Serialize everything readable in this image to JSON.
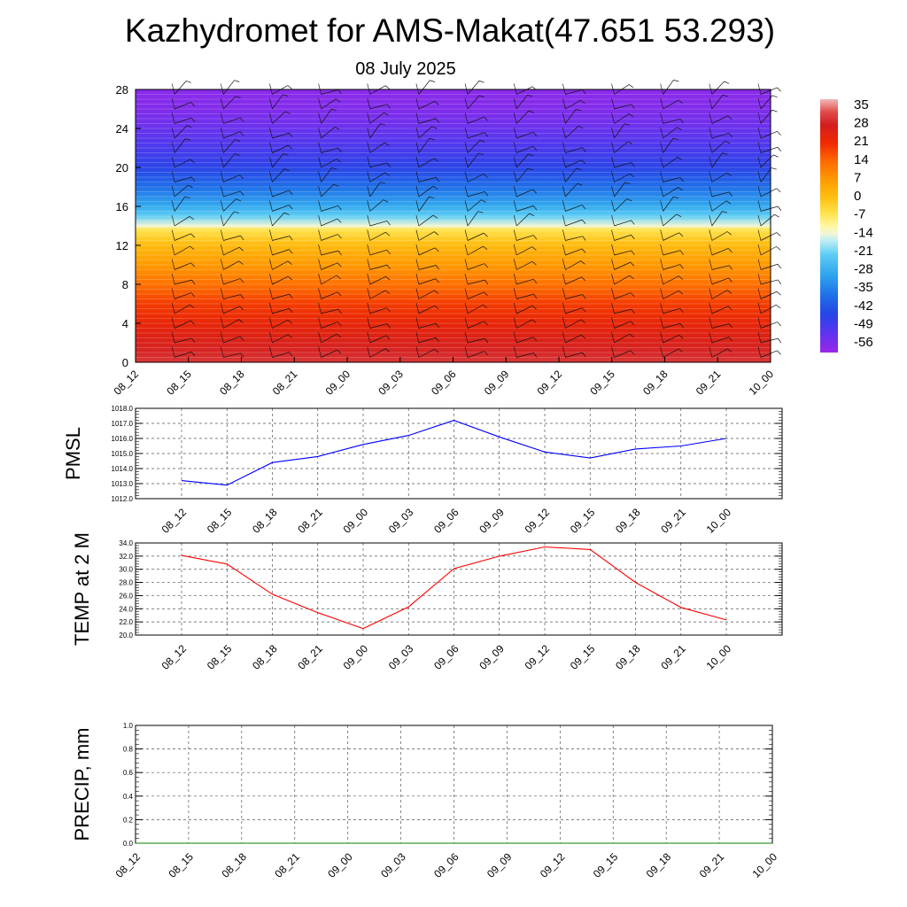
{
  "title": "Kazhydromet for AMS-Makat(47.651 53.293)",
  "subtitle": "08 July 2025",
  "time_labels": [
    "08_12",
    "08_15",
    "08_18",
    "08_21",
    "09_00",
    "09_03",
    "09_06",
    "09_09",
    "09_12",
    "09_15",
    "09_18",
    "09_21",
    "10_00"
  ],
  "colors": {
    "pmsl_line": "#0000ff",
    "temp_line": "#ff0000",
    "precip_line": "#008000",
    "grid": "#555555"
  },
  "chart_data": [
    {
      "type": "heatmap",
      "description_of_field": "",
      "x": [
        "08_12",
        "08_15",
        "08_18",
        "08_21",
        "09_00",
        "09_03",
        "09_06",
        "09_09",
        "09_12",
        "09_15",
        "09_18",
        "09_21",
        "10_00"
      ],
      "ylim": [
        0,
        28
      ],
      "yticks": [
        0,
        4,
        8,
        12,
        16,
        20,
        24,
        28
      ],
      "colorbar": {
        "ticks": [
          35,
          28,
          21,
          14,
          7,
          0,
          -7,
          -14,
          -21,
          -28,
          -35,
          -42,
          -49,
          -56
        ],
        "range": [
          -60,
          38
        ],
        "stops": [
          {
            "v": -60,
            "c": "#9a27e8"
          },
          {
            "v": -52,
            "c": "#5a35f0"
          },
          {
            "v": -45,
            "c": "#2346e6"
          },
          {
            "v": -38,
            "c": "#1f6fe8"
          },
          {
            "v": -30,
            "c": "#2ea5ee"
          },
          {
            "v": -22,
            "c": "#5fcdf4"
          },
          {
            "v": -17,
            "c": "#b8ecf4"
          },
          {
            "v": -14,
            "c": "#f1f6d8"
          },
          {
            "v": -11,
            "c": "#fff7a0"
          },
          {
            "v": -6,
            "c": "#ffe24a"
          },
          {
            "v": 0,
            "c": "#ffbf10"
          },
          {
            "v": 7,
            "c": "#ff9900"
          },
          {
            "v": 14,
            "c": "#ff6a00"
          },
          {
            "v": 21,
            "c": "#f02a00"
          },
          {
            "v": 28,
            "c": "#d41d1d"
          },
          {
            "v": 33,
            "c": "#e04a4a"
          },
          {
            "v": 38,
            "c": "#f2b8b8"
          }
        ]
      },
      "temperature_profile": [
        {
          "h": 0,
          "t": 31
        },
        {
          "h": 1,
          "t": 29
        },
        {
          "h": 2.5,
          "t": 26
        },
        {
          "h": 4,
          "t": 23
        },
        {
          "h": 6,
          "t": 19
        },
        {
          "h": 8,
          "t": 13
        },
        {
          "h": 10,
          "t": 7
        },
        {
          "h": 12,
          "t": 1
        },
        {
          "h": 13.6,
          "t": -6
        },
        {
          "h": 14,
          "t": -14
        },
        {
          "h": 15,
          "t": -22
        },
        {
          "h": 16,
          "t": -29
        },
        {
          "h": 18,
          "t": -38
        },
        {
          "h": 20,
          "t": -46
        },
        {
          "h": 22,
          "t": -50
        },
        {
          "h": 24,
          "t": -54
        },
        {
          "h": 26,
          "t": -57
        },
        {
          "h": 28,
          "t": -58
        }
      ],
      "wind_barbs": true
    },
    {
      "type": "line",
      "ylabel": "PMSL",
      "x": [
        "08_12",
        "08_15",
        "08_18",
        "08_21",
        "09_00",
        "09_03",
        "09_06",
        "09_09",
        "09_12",
        "09_15",
        "09_18",
        "09_21",
        "10_00"
      ],
      "ylim": [
        1012.0,
        1018.0
      ],
      "yticks": [
        "1012.0",
        "1013.0",
        "1014.0",
        "1015.0",
        "1016.0",
        "1017.0",
        "1018.0"
      ],
      "series": [
        {
          "values": [
            1013.2,
            1012.9,
            1014.4,
            1014.8,
            1015.6,
            1016.2,
            1017.2,
            1016.1,
            1015.1,
            1014.7,
            1015.3,
            1015.5,
            1016.0
          ]
        }
      ]
    },
    {
      "type": "line",
      "ylabel": "TEMP at 2 M",
      "x": [
        "08_12",
        "08_15",
        "08_18",
        "08_21",
        "09_00",
        "09_03",
        "09_06",
        "09_09",
        "09_12",
        "09_15",
        "09_18",
        "09_21",
        "10_00"
      ],
      "ylim": [
        20.0,
        34.0
      ],
      "yticks": [
        "20.0",
        "22.0",
        "24.0",
        "26.0",
        "28.0",
        "30.0",
        "32.0",
        "34.0"
      ],
      "series": [
        {
          "values": [
            32.1,
            30.8,
            26.2,
            23.4,
            21.0,
            24.3,
            30.1,
            32.0,
            33.4,
            33.0,
            28.0,
            24.2,
            22.3
          ]
        }
      ]
    },
    {
      "type": "line",
      "ylabel": "PRECIP, mm",
      "x": [
        "08_12",
        "08_15",
        "08_18",
        "08_21",
        "09_00",
        "09_03",
        "09_06",
        "09_09",
        "09_12",
        "09_15",
        "09_18",
        "09_21",
        "10_00"
      ],
      "ylim": [
        0.0,
        1.0
      ],
      "yticks": [
        "0.0",
        "0.2",
        "0.4",
        "0.6",
        "0.8",
        "1.0"
      ],
      "series": [
        {
          "values": [
            0,
            0,
            0,
            0,
            0,
            0,
            0,
            0,
            0,
            0,
            0,
            0,
            0
          ]
        }
      ]
    }
  ]
}
